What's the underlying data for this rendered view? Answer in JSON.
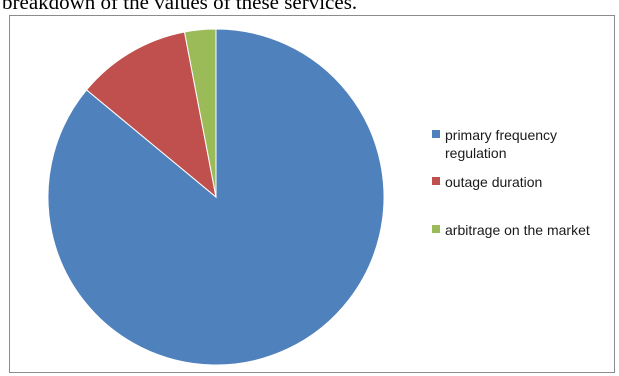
{
  "caption": "breakdown of the values of these services.",
  "chart_data": {
    "type": "pie",
    "categories": [
      "primary frequency regulation",
      "outage duration",
      "arbitrage on the market"
    ],
    "values": [
      86,
      11,
      3
    ],
    "colors": [
      "#4f81bd",
      "#c0504d",
      "#9bbb59"
    ],
    "start_angle_deg": 0,
    "direction": "clockwise",
    "legend_position": "right"
  }
}
